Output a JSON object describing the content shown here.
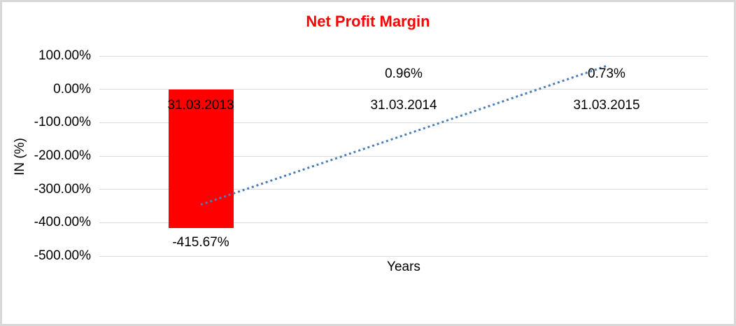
{
  "chart": {
    "title": "Net Profit Margin",
    "title_color": "#ff0000",
    "x_axis_title": "Years",
    "y_axis_title": "IN (%)"
  },
  "chart_data": {
    "type": "bar",
    "title": "Net Profit Margin",
    "xlabel": "Years",
    "ylabel": "IN (%)",
    "categories": [
      "31.03.2013",
      "31.03.2014",
      "31.03.2015"
    ],
    "values": [
      -415.67,
      0.96,
      0.73
    ],
    "data_labels": [
      "-415.67%",
      "0.96%",
      "0.73%"
    ],
    "y_ticks": [
      {
        "label": "100.00%",
        "value": 100
      },
      {
        "label": "0.00%",
        "value": 0
      },
      {
        "label": "-100.00%",
        "value": -100
      },
      {
        "label": "-200.00%",
        "value": -200
      },
      {
        "label": "-300.00%",
        "value": -300
      },
      {
        "label": "-400.00%",
        "value": -400
      },
      {
        "label": "-500.00%",
        "value": -500
      }
    ],
    "ylim": [
      -500,
      100
    ],
    "grid": true,
    "legend": false,
    "bar_color": "#ff0000",
    "gridline_color": "#d9d9d9",
    "trendline": {
      "type": "linear",
      "style": "dotted",
      "color": "#4a7ebb",
      "start_value_pct": -346,
      "end_value_pct": 70
    }
  }
}
